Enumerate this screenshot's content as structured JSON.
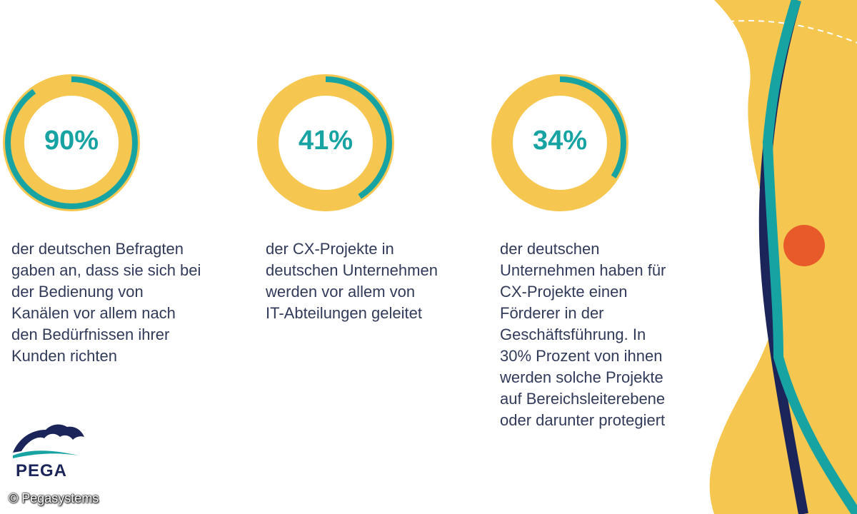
{
  "stats": [
    {
      "value": "90%",
      "fraction": 0.9,
      "description": "der deutschen Befragten\ngaben an, dass sie sich bei\nder Bedienung von\nKanälen vor allem nach\nden Bedürfnissen ihrer\nKunden richten"
    },
    {
      "value": "41%",
      "fraction": 0.41,
      "description": "der CX-Projekte in\ndeutschen Unternehmen\nwerden vor allem von\nIT-Abteilungen geleitet"
    },
    {
      "value": "34%",
      "fraction": 0.34,
      "description": "der deutschen\nUnternehmen haben für\nCX-Projekte einen\nFörderer in der\nGeschäftsführung. In\n30% Prozent von ihnen\nwerden solche Projekte\nauf Bereichsleiterebene\noder darunter protegiert"
    }
  ],
  "brand": {
    "name": "PEGA",
    "copyright": "© Pegasystems"
  },
  "colors": {
    "ring_fill": "#f6c750",
    "ring_progress": "#18a3a3",
    "text": "#323a5a",
    "navy": "#1b2559",
    "orange": "#e85a2a",
    "teal": "#18a3a3"
  }
}
